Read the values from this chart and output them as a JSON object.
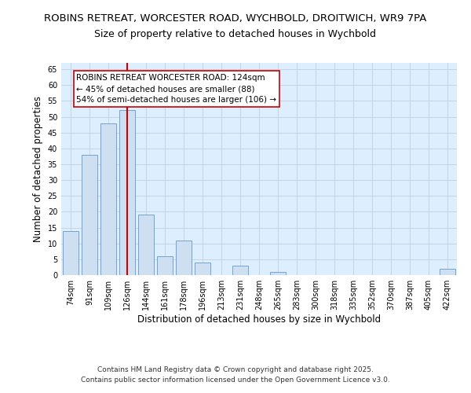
{
  "title_line1": "ROBINS RETREAT, WORCESTER ROAD, WYCHBOLD, DROITWICH, WR9 7PA",
  "title_line2": "Size of property relative to detached houses in Wychbold",
  "xlabel": "Distribution of detached houses by size in Wychbold",
  "ylabel": "Number of detached properties",
  "categories": [
    "74sqm",
    "91sqm",
    "109sqm",
    "126sqm",
    "144sqm",
    "161sqm",
    "178sqm",
    "196sqm",
    "213sqm",
    "231sqm",
    "248sqm",
    "265sqm",
    "283sqm",
    "300sqm",
    "318sqm",
    "335sqm",
    "352sqm",
    "370sqm",
    "387sqm",
    "405sqm",
    "422sqm"
  ],
  "values": [
    14,
    38,
    48,
    52,
    19,
    6,
    11,
    4,
    0,
    3,
    0,
    1,
    0,
    0,
    0,
    0,
    0,
    0,
    0,
    0,
    2
  ],
  "bar_color": "#cddff0",
  "bar_edge_color": "#6699cc",
  "grid_color": "#c0d0e0",
  "background_color": "#ddeeff",
  "vline_index": 3,
  "vline_color": "#cc0000",
  "annotation_text": "ROBINS RETREAT WORCESTER ROAD: 124sqm\n← 45% of detached houses are smaller (88)\n54% of semi-detached houses are larger (106) →",
  "annotation_box_facecolor": "#ffffff",
  "annotation_box_edgecolor": "#cc0000",
  "ylim": [
    0,
    67
  ],
  "yticks": [
    0,
    5,
    10,
    15,
    20,
    25,
    30,
    35,
    40,
    45,
    50,
    55,
    60,
    65
  ],
  "footer_line1": "Contains HM Land Registry data © Crown copyright and database right 2025.",
  "footer_line2": "Contains public sector information licensed under the Open Government Licence v3.0.",
  "title1_fontsize": 9.5,
  "title2_fontsize": 9.0,
  "axis_label_fontsize": 8.5,
  "tick_fontsize": 7.0,
  "annotation_fontsize": 7.5,
  "footer_fontsize": 6.5
}
